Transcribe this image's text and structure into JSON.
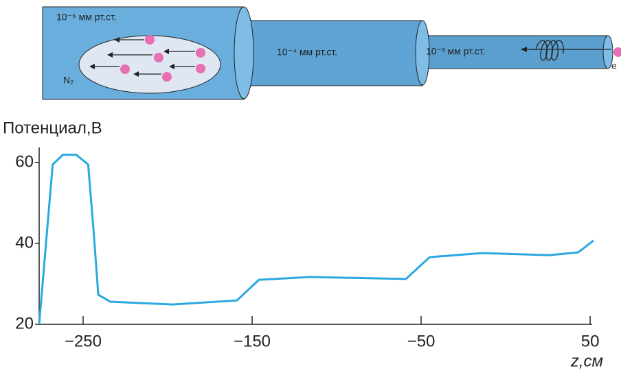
{
  "diagram": {
    "labels": [
      "10⁻⁶ мм рт.ст.",
      "N₂",
      "10⁻⁴ мм рт.ст.",
      "10⁻³ мм рт.ст.",
      "e"
    ]
  },
  "chart_data": {
    "type": "line",
    "ylabel": "Потенциал,В",
    "xlabel": "z,см",
    "x": [
      -276,
      -268,
      -262,
      -254,
      -247,
      -244,
      -241,
      -234,
      -197,
      -159,
      -146,
      -116,
      -59,
      -45,
      -14,
      26,
      43,
      52
    ],
    "series": [
      {
        "color": "#2aa8e0",
        "values": [
          20,
          59.5,
          61.9,
          61.9,
          59.5,
          44.2,
          27.3,
          25.6,
          24.9,
          25.9,
          31,
          31.7,
          31.2,
          36.6,
          37.6,
          37.1,
          37.8,
          40.7
        ]
      }
    ],
    "xlim": [
      -276,
      52
    ],
    "ylim": [
      20,
      60
    ],
    "xticks": [
      {
        "value": -250,
        "label": "−250"
      },
      {
        "value": -150,
        "label": "−150"
      },
      {
        "value": -50,
        "label": "−50"
      },
      50
    ],
    "yticks": [
      20,
      40,
      60
    ]
  }
}
